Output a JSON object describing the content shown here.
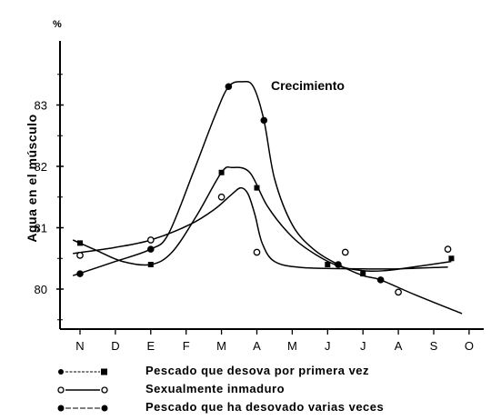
{
  "chart_data": {
    "type": "line",
    "ylabel": "Agua en el músculo",
    "yunit": "%",
    "ylim": [
      79.5,
      83.8
    ],
    "yticks": [
      "80",
      "81",
      "82",
      "83"
    ],
    "categories": [
      "N",
      "D",
      "E",
      "F",
      "M",
      "A",
      "M",
      "J",
      "J",
      "A",
      "S",
      "O"
    ],
    "annotation": "Crecimiento",
    "series": [
      {
        "name": "Pescado que desova por primera vez",
        "marker": "filled-square",
        "points": [
          [
            0,
            80.75
          ],
          [
            2,
            80.4
          ],
          [
            4,
            81.9
          ],
          [
            5,
            81.65
          ],
          [
            7,
            80.4
          ],
          [
            8,
            80.25
          ],
          [
            10.5,
            80.5
          ]
        ],
        "curve": [
          [
            -0.2,
            80.8
          ],
          [
            0.5,
            80.62
          ],
          [
            1.2,
            80.45
          ],
          [
            2,
            80.4
          ],
          [
            2.6,
            80.6
          ],
          [
            3.3,
            81.2
          ],
          [
            4,
            81.9
          ],
          [
            4.3,
            81.98
          ],
          [
            4.8,
            81.9
          ],
          [
            5.3,
            81.35
          ],
          [
            6,
            80.85
          ],
          [
            6.7,
            80.55
          ],
          [
            7.3,
            80.38
          ],
          [
            8,
            80.3
          ],
          [
            8.6,
            80.3
          ],
          [
            9.3,
            80.35
          ],
          [
            10.5,
            80.45
          ]
        ]
      },
      {
        "name": "Sexualmente inmaduro",
        "marker": "open-circle",
        "points": [
          [
            0,
            80.55
          ],
          [
            2,
            80.8
          ],
          [
            4,
            81.5
          ],
          [
            5,
            80.6
          ],
          [
            7.5,
            80.6
          ],
          [
            9,
            79.95
          ],
          [
            10.4,
            80.65
          ]
        ],
        "curve": [
          [
            -0.2,
            80.58
          ],
          [
            1,
            80.68
          ],
          [
            2,
            80.8
          ],
          [
            3.1,
            81.05
          ],
          [
            3.8,
            81.3
          ],
          [
            4.3,
            81.55
          ],
          [
            4.55,
            81.65
          ],
          [
            4.75,
            81.55
          ],
          [
            4.95,
            81.2
          ],
          [
            5.15,
            80.75
          ],
          [
            5.5,
            80.45
          ],
          [
            6.3,
            80.35
          ],
          [
            8,
            80.33
          ],
          [
            9,
            80.33
          ],
          [
            10.4,
            80.36
          ]
        ]
      },
      {
        "name": "Pescado que ha desovado varias veces",
        "marker": "filled-circle",
        "points": [
          [
            0,
            80.25
          ],
          [
            2,
            80.65
          ],
          [
            4.2,
            83.3
          ],
          [
            5.2,
            82.75
          ],
          [
            7.3,
            80.4
          ],
          [
            8.5,
            80.15
          ]
        ],
        "curve": [
          [
            -0.2,
            80.22
          ],
          [
            1,
            80.45
          ],
          [
            2,
            80.65
          ],
          [
            2.5,
            80.9
          ],
          [
            3.2,
            81.9
          ],
          [
            3.8,
            82.8
          ],
          [
            4.2,
            83.3
          ],
          [
            4.6,
            83.38
          ],
          [
            4.9,
            83.3
          ],
          [
            5.2,
            82.75
          ],
          [
            5.5,
            81.8
          ],
          [
            6,
            81.05
          ],
          [
            6.6,
            80.65
          ],
          [
            7.3,
            80.4
          ],
          [
            8,
            80.22
          ],
          [
            8.5,
            80.15
          ],
          [
            9.5,
            79.9
          ],
          [
            10.8,
            79.6
          ]
        ]
      }
    ]
  }
}
